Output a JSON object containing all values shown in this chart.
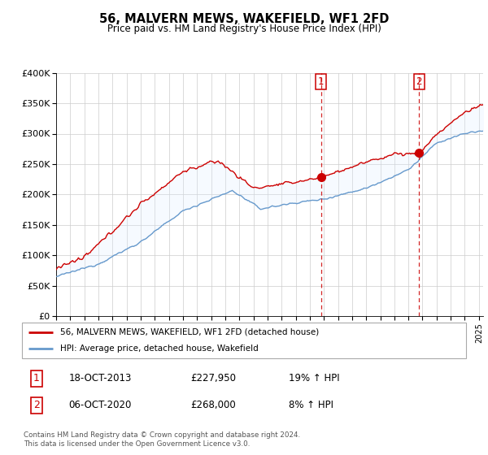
{
  "title": "56, MALVERN MEWS, WAKEFIELD, WF1 2FD",
  "subtitle": "Price paid vs. HM Land Registry's House Price Index (HPI)",
  "legend_line1": "56, MALVERN MEWS, WAKEFIELD, WF1 2FD (detached house)",
  "legend_line2": "HPI: Average price, detached house, Wakefield",
  "footer1": "Contains HM Land Registry data © Crown copyright and database right 2024.",
  "footer2": "This data is licensed under the Open Government Licence v3.0.",
  "ylim": [
    0,
    400000
  ],
  "yticks": [
    0,
    50000,
    100000,
    150000,
    200000,
    250000,
    300000,
    350000,
    400000
  ],
  "ytick_labels": [
    "£0",
    "£50K",
    "£100K",
    "£150K",
    "£200K",
    "£250K",
    "£300K",
    "£350K",
    "£400K"
  ],
  "sale1_x": 2013.79,
  "sale1_y": 227950,
  "sale1_label": "1",
  "sale1_date": "18-OCT-2013",
  "sale1_price": "£227,950",
  "sale1_hpi": "19% ↑ HPI",
  "sale2_x": 2020.76,
  "sale2_y": 268000,
  "sale2_label": "2",
  "sale2_date": "06-OCT-2020",
  "sale2_price": "£268,000",
  "sale2_hpi": "8% ↑ HPI",
  "line_color_red": "#cc0000",
  "line_color_blue": "#6699cc",
  "fill_color": "#ddeeff",
  "grid_color": "#cccccc",
  "background_color": "#ffffff",
  "marker_box_color": "#cc0000",
  "dashed_color": "#cc0000",
  "table_box_color": "#cc0000",
  "xlim_left": 1995,
  "xlim_right": 2025.3
}
